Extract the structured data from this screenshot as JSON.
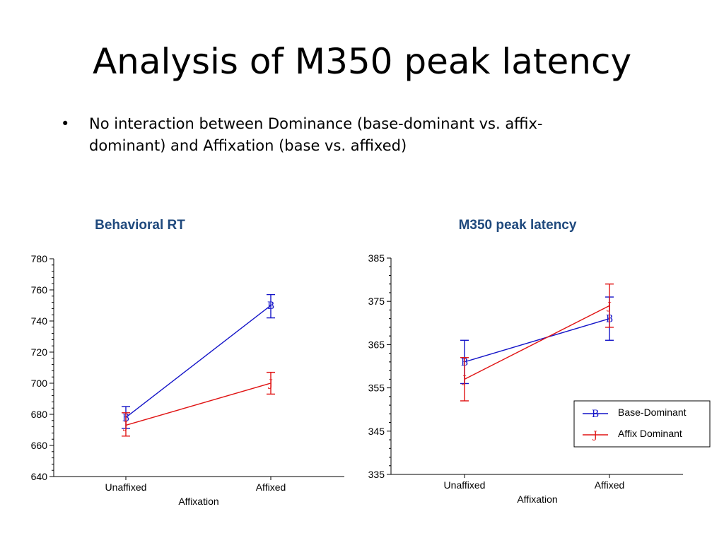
{
  "slide": {
    "title": "Analysis of M350 peak latency",
    "bullet_marker": "•",
    "bullet": "No interaction between Dominance (base-dominant vs. affix-dominant) and Affixation (base vs. affixed)"
  },
  "colors": {
    "base_dominant": "#1414c8",
    "affix_dominant": "#e01414",
    "chart_title": "#1f497d"
  },
  "chart_data": [
    {
      "type": "line",
      "title": "Behavioral RT",
      "xlabel": "Affixation",
      "ylabel": "",
      "categories": [
        "Unaffixed",
        "Affixed"
      ],
      "ylim": [
        640,
        780
      ],
      "yticks": [
        640,
        660,
        680,
        700,
        720,
        740,
        760,
        780
      ],
      "legend": false,
      "series": [
        {
          "name": "Base-Dominant",
          "marker": "B",
          "values": [
            678,
            750
          ],
          "error": [
            [
              671,
              685
            ],
            [
              742,
              757
            ]
          ]
        },
        {
          "name": "Affix Dominant",
          "marker": "J",
          "values": [
            673,
            700
          ],
          "error": [
            [
              666,
              681
            ],
            [
              693,
              707
            ]
          ]
        }
      ]
    },
    {
      "type": "line",
      "title": "M350 peak latency",
      "xlabel": "Affixation",
      "ylabel": "",
      "categories": [
        "Unaffixed",
        "Affixed"
      ],
      "ylim": [
        335,
        385
      ],
      "yticks": [
        335,
        345,
        355,
        365,
        375,
        385
      ],
      "legend": "bottom-right",
      "series": [
        {
          "name": "Base-Dominant",
          "marker": "B",
          "values": [
            361,
            371
          ],
          "error": [
            [
              356,
              366
            ],
            [
              366,
              376
            ]
          ]
        },
        {
          "name": "Affix Dominant",
          "marker": "J",
          "values": [
            357,
            374
          ],
          "error": [
            [
              352,
              362
            ],
            [
              369,
              379
            ]
          ]
        }
      ]
    }
  ]
}
